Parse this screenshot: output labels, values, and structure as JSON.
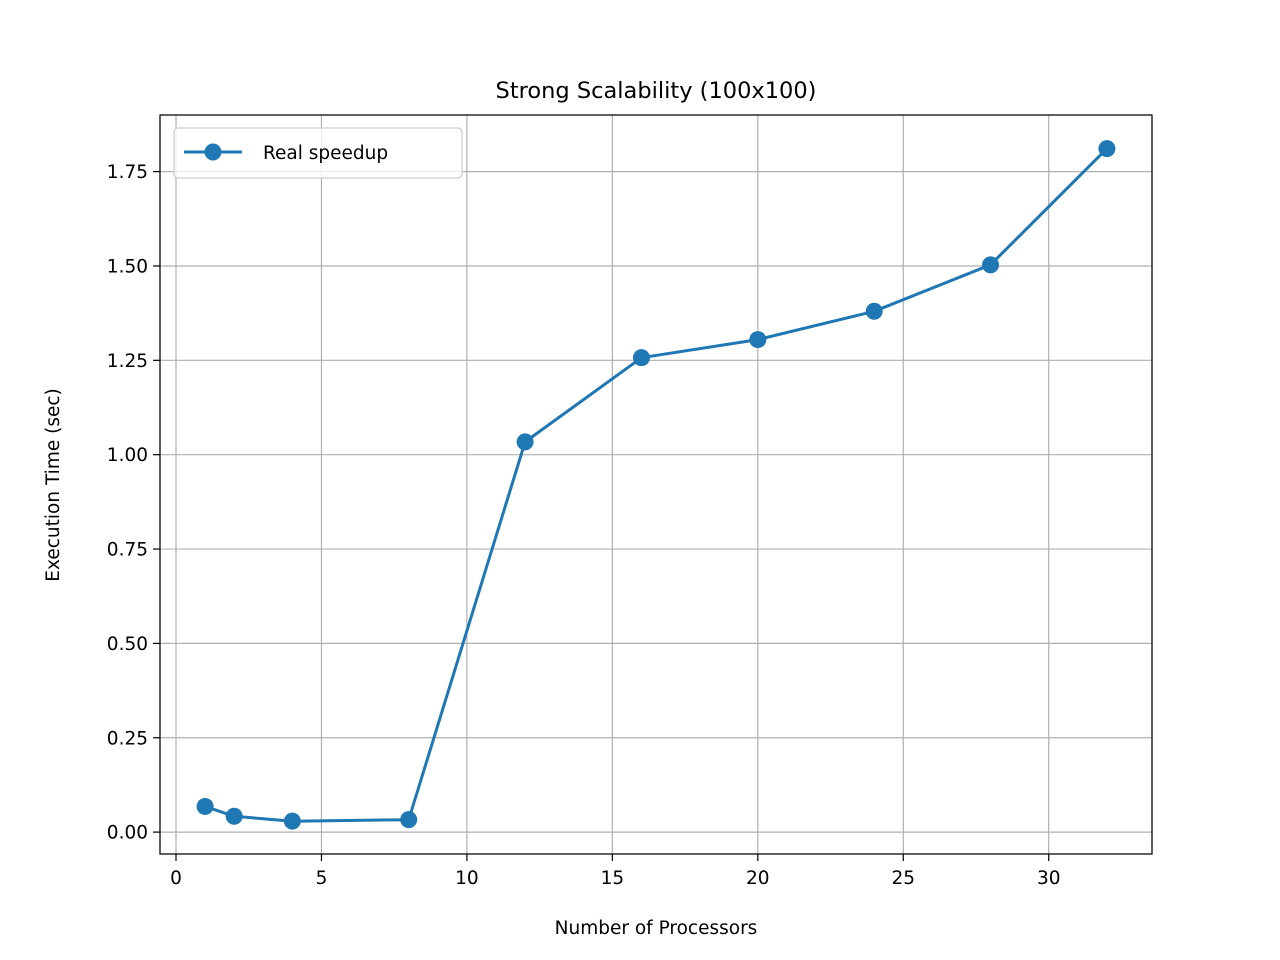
{
  "chart_data": {
    "type": "line",
    "title": "Strong Scalability (100x100)",
    "xlabel": "Number of Processors",
    "ylabel": "Execution Time (sec)",
    "xlim": [
      -0.55,
      33.55
    ],
    "ylim": [
      -0.058,
      1.9
    ],
    "xticks": [
      0,
      5,
      10,
      15,
      20,
      25,
      30
    ],
    "yticks": [
      0.0,
      0.25,
      0.5,
      0.75,
      1.0,
      1.25,
      1.5,
      1.75
    ],
    "xtick_labels": [
      "0",
      "5",
      "10",
      "15",
      "20",
      "25",
      "30"
    ],
    "ytick_labels": [
      "0.00",
      "0.25",
      "0.50",
      "0.75",
      "1.00",
      "1.25",
      "1.50",
      "1.75"
    ],
    "grid": true,
    "legend_position": "upper-left",
    "series": [
      {
        "name": "Real speedup",
        "color": "#1f77b4",
        "marker": "circle",
        "x": [
          1,
          2,
          4,
          8,
          12,
          16,
          20,
          24,
          28,
          32
        ],
        "values": [
          0.068,
          0.042,
          0.029,
          0.033,
          1.034,
          1.257,
          1.305,
          1.38,
          1.503,
          1.811
        ]
      }
    ]
  }
}
